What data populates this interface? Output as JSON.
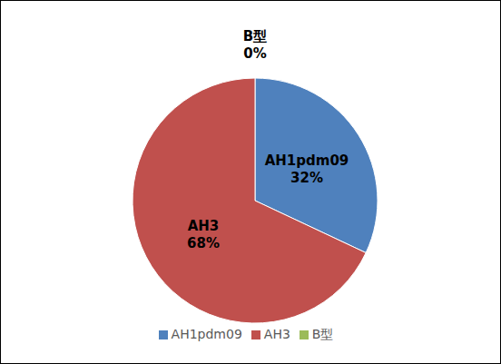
{
  "chart_data": {
    "type": "pie",
    "categories": [
      "AH1pdm09",
      "AH3",
      "B型"
    ],
    "values": [
      32,
      68,
      0
    ],
    "value_labels": [
      "32%",
      "68%",
      "0%"
    ],
    "colors": [
      "#4f81bd",
      "#c0504d",
      "#9bbb59"
    ],
    "data_labels": true,
    "legend": "bottom"
  }
}
